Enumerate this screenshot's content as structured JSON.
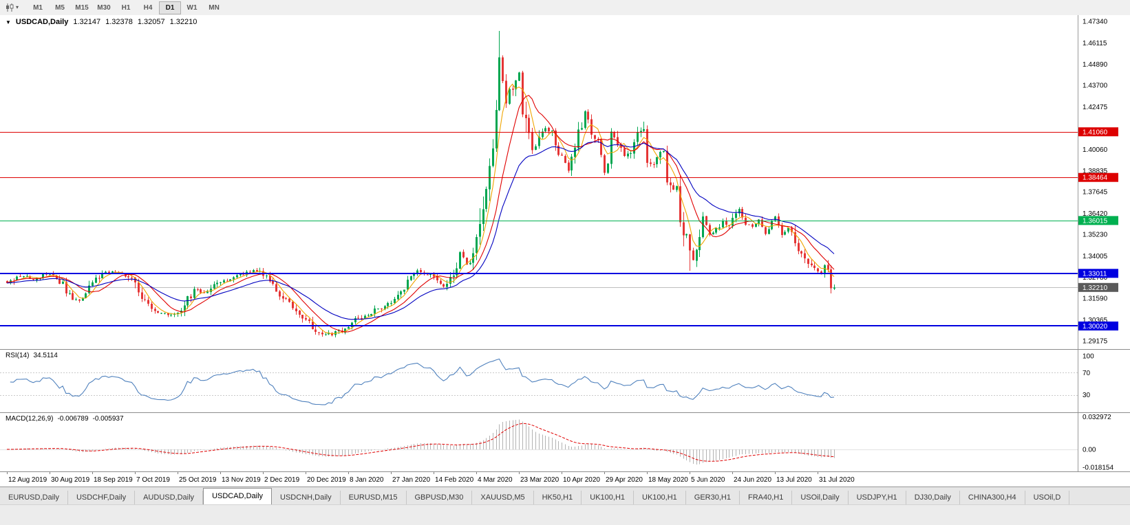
{
  "icons": {
    "chart_menu_caret": "▾",
    "symbol_dropdown": "▼"
  },
  "toolbar": {
    "timeframes": [
      "M1",
      "M5",
      "M15",
      "M30",
      "H1",
      "H4",
      "D1",
      "W1",
      "MN"
    ],
    "active_timeframe": "D1"
  },
  "chart": {
    "title": "USDCAD,Daily",
    "ohlc": {
      "open": "1.32147",
      "high": "1.32378",
      "low": "1.32057",
      "close": "1.32210"
    },
    "price_axis_labels": [
      "1.47340",
      "1.46115",
      "1.44890",
      "1.43700",
      "1.42475",
      "1.40060",
      "1.38835",
      "1.37645",
      "1.36420",
      "1.35230",
      "1.34005",
      "1.32780",
      "1.31590",
      "1.30365",
      "1.29175"
    ],
    "levels": [
      {
        "label": "1.41060",
        "value": 1.4106,
        "color": "#dd0000",
        "width": 1
      },
      {
        "label": "1.38464",
        "value": 1.38464,
        "color": "#dd0000",
        "width": 1
      },
      {
        "label": "1.36015",
        "value": 1.36015,
        "color": "#00b050",
        "width": 1
      },
      {
        "label": "1.33011",
        "value": 1.33011,
        "color": "#0000e0",
        "width": 2
      },
      {
        "label": "1.30020",
        "value": 1.3002,
        "color": "#0000e0",
        "width": 2
      }
    ],
    "current_price": {
      "label": "1.32210",
      "value": 1.3221,
      "line_color": "#bdbdbd",
      "badge_color": "#5a5a5a"
    }
  },
  "rsi": {
    "label": "RSI(14)",
    "value": "34.5114",
    "period": 14,
    "line_color": "#4f81bd",
    "levels": [
      {
        "label": "100",
        "value": 100,
        "line": false
      },
      {
        "label": "70",
        "value": 70,
        "line": true
      },
      {
        "label": "30",
        "value": 30,
        "line": true
      }
    ]
  },
  "macd": {
    "label": "MACD(12,26,9)",
    "main_value": "-0.006789",
    "signal_value": "-0.005937",
    "histogram_color": "#b2b2b2",
    "signal_color": "#e00000",
    "axis_labels": [
      {
        "label": "0.032972",
        "value": 0.032972
      },
      {
        "label": "0.00",
        "value": 0
      },
      {
        "label": "-0.018154",
        "value": -0.018154
      }
    ]
  },
  "date_axis": {
    "bars_per_label": 13,
    "labels": [
      "12 Aug 2019",
      "30 Aug 2019",
      "18 Sep 2019",
      "7 Oct 2019",
      "25 Oct 2019",
      "13 Nov 2019",
      "2 Dec 2019",
      "20 Dec 2019",
      "8 Jan 2020",
      "27 Jan 2020",
      "14 Feb 2020",
      "4 Mar 2020",
      "23 Mar 2020",
      "10 Apr 2020",
      "29 Apr 2020",
      "18 May 2020",
      "5 Jun 2020",
      "24 Jun 2020",
      "13 Jul 2020",
      "31 Jul 2020"
    ]
  },
  "tabs": {
    "active_index": 3,
    "items": [
      "EURUSD,Daily",
      "USDCHF,Daily",
      "AUDUSD,Daily",
      "USDCAD,Daily",
      "USDCNH,Daily",
      "EURUSD,M15",
      "GBPUSD,M30",
      "XAUUSD,M5",
      "HK50,H1",
      "UK100,H1",
      "UK100,H1",
      "GER30,H1",
      "FRA40,H1",
      "USOil,Daily",
      "USDJPY,H1",
      "DJ30,Daily",
      "CHINA300,H4",
      "USOil,D"
    ]
  },
  "chart_data": {
    "type": "candlestick",
    "symbol": "USDCAD",
    "timeframe": "Daily",
    "bar_count": 253,
    "bull_color": "#00a650",
    "bear_color": "#e53535",
    "price_axis_top": 1.4734,
    "price_axis_bottom": 1.29175,
    "anchors": [
      [
        0,
        1.3235
      ],
      [
        4,
        1.329
      ],
      [
        8,
        1.327
      ],
      [
        13,
        1.3305
      ],
      [
        17,
        1.324
      ],
      [
        20,
        1.314
      ],
      [
        23,
        1.317
      ],
      [
        26,
        1.3245
      ],
      [
        30,
        1.3305
      ],
      [
        34,
        1.331
      ],
      [
        38,
        1.328
      ],
      [
        40,
        1.32
      ],
      [
        43,
        1.312
      ],
      [
        46,
        1.3085
      ],
      [
        49,
        1.306
      ],
      [
        52,
        1.307
      ],
      [
        55,
        1.315
      ],
      [
        57,
        1.3205
      ],
      [
        60,
        1.319
      ],
      [
        63,
        1.3225
      ],
      [
        66,
        1.3255
      ],
      [
        69,
        1.327
      ],
      [
        72,
        1.3295
      ],
      [
        75,
        1.332
      ],
      [
        78,
        1.33
      ],
      [
        81,
        1.3225
      ],
      [
        84,
        1.3165
      ],
      [
        87,
        1.3115
      ],
      [
        90,
        1.306
      ],
      [
        93,
        1.2985
      ],
      [
        96,
        1.295
      ],
      [
        99,
        1.2958
      ],
      [
        102,
        1.298
      ],
      [
        105,
        1.3025
      ],
      [
        108,
        1.3055
      ],
      [
        111,
        1.308
      ],
      [
        114,
        1.3105
      ],
      [
        117,
        1.314
      ],
      [
        120,
        1.3205
      ],
      [
        123,
        1.327
      ],
      [
        125,
        1.331
      ],
      [
        127,
        1.329
      ],
      [
        129,
        1.3305
      ],
      [
        131,
        1.327
      ],
      [
        133,
        1.3235
      ],
      [
        135,
        1.326
      ],
      [
        137,
        1.334
      ],
      [
        138,
        1.3425
      ],
      [
        139,
        1.339
      ],
      [
        140,
        1.334
      ],
      [
        142,
        1.338
      ],
      [
        144,
        1.356
      ],
      [
        146,
        1.378
      ],
      [
        148,
        1.4
      ],
      [
        149,
        1.42
      ],
      [
        150,
        1.4515
      ],
      [
        151,
        1.438
      ],
      [
        152,
        1.428
      ],
      [
        153,
        1.434
      ],
      [
        155,
        1.44
      ],
      [
        156,
        1.443
      ],
      [
        157,
        1.418
      ],
      [
        158,
        1.419
      ],
      [
        160,
        1.399
      ],
      [
        162,
        1.406
      ],
      [
        164,
        1.414
      ],
      [
        166,
        1.409
      ],
      [
        168,
        1.4
      ],
      [
        169,
        1.395
      ],
      [
        171,
        1.389
      ],
      [
        173,
        1.404
      ],
      [
        175,
        1.413
      ],
      [
        176,
        1.422
      ],
      [
        178,
        1.41
      ],
      [
        180,
        1.403
      ],
      [
        182,
        1.388
      ],
      [
        183,
        1.394
      ],
      [
        184,
        1.409
      ],
      [
        186,
        1.403
      ],
      [
        188,
        1.397
      ],
      [
        190,
        1.4
      ],
      [
        192,
        1.411
      ],
      [
        194,
        1.411
      ],
      [
        195,
        1.395
      ],
      [
        197,
        1.392
      ],
      [
        199,
        1.399
      ],
      [
        200,
        1.398
      ],
      [
        201,
        1.379
      ],
      [
        204,
        1.378
      ],
      [
        205,
        1.358
      ],
      [
        207,
        1.35
      ],
      [
        208,
        1.343
      ],
      [
        209,
        1.337
      ],
      [
        210,
        1.344
      ],
      [
        212,
        1.3615
      ],
      [
        214,
        1.3535
      ],
      [
        216,
        1.3545
      ],
      [
        218,
        1.36
      ],
      [
        220,
        1.356
      ],
      [
        221,
        1.363
      ],
      [
        223,
        1.368
      ],
      [
        225,
        1.358
      ],
      [
        227,
        1.357
      ],
      [
        229,
        1.3605
      ],
      [
        231,
        1.352
      ],
      [
        233,
        1.359
      ],
      [
        234,
        1.3615
      ],
      [
        236,
        1.3515
      ],
      [
        238,
        1.3575
      ],
      [
        240,
        1.3455
      ],
      [
        242,
        1.3415
      ],
      [
        244,
        1.337
      ],
      [
        246,
        1.334
      ],
      [
        248,
        1.33
      ],
      [
        249,
        1.3335
      ],
      [
        250,
        1.334
      ],
      [
        251,
        1.324
      ],
      [
        252,
        1.3221
      ]
    ],
    "special_candles": [
      {
        "index": 150,
        "high": 1.468
      },
      {
        "index": 208,
        "low": 1.3315
      },
      {
        "index": 252,
        "open": 1.32147,
        "high": 1.32378,
        "low": 1.32057,
        "close": 1.3221
      }
    ],
    "moving_averages": [
      {
        "period": 5,
        "type": "sma",
        "color": "#f0a500",
        "name": "fast-ma"
      },
      {
        "period": 11,
        "type": "sma",
        "color": "#e00000",
        "name": "medium-ma"
      },
      {
        "period": 24,
        "type": "ema",
        "color": "#0000c0",
        "name": "slow-ma"
      }
    ]
  }
}
